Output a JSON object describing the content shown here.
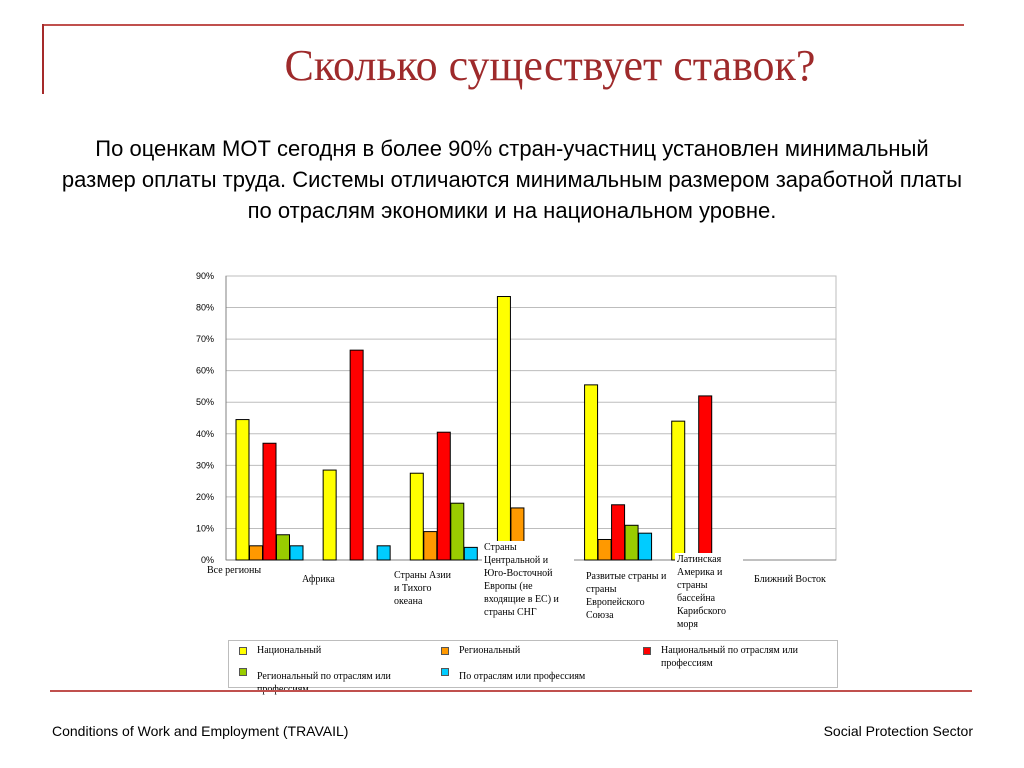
{
  "slide": {
    "title": "Сколько существует ставок?",
    "text": "По оценкам МОТ сегодня в более 90% стран-участниц установлен минимальный размер оплаты труда. Системы отличаются минимальным размером заработной платы по отраслям экономики и на национальном уровне.",
    "footer_left": "Conditions of Work and Employment (TRAVAIL)",
    "footer_right": "Social Protection Sector"
  },
  "chart_data": {
    "type": "bar",
    "categories": [
      "Все регионы",
      "Африка",
      "Страны Азии и Тихого океана",
      "Страны Центральной и Юго-Восточной Европы (не входящие в ЕС) и страны СНГ",
      "Развитые страны и страны Европейского Союза",
      "Латинская Америка и страны бассейна Карибского моря",
      "Ближний Восток"
    ],
    "series": [
      {
        "name": "Национальный",
        "color": "#ffff00",
        "values": [
          44.5,
          28.5,
          27.5,
          83.5,
          55.5,
          44,
          null
        ]
      },
      {
        "name": "Региональный",
        "color": "#ff9900",
        "values": [
          4.5,
          null,
          9,
          16.5,
          6.5,
          null,
          null
        ]
      },
      {
        "name": "Национальный по отраслям или профессиям",
        "color": "#ff0000",
        "values": [
          37,
          66.5,
          40.5,
          null,
          17.5,
          52,
          null
        ]
      },
      {
        "name": "Региональный по отраслям или профессиям",
        "color": "#99cc00",
        "values": [
          8,
          null,
          18,
          null,
          11,
          null,
          null
        ]
      },
      {
        "name": "По отраслям или профессиям",
        "color": "#00ccff",
        "values": [
          4.5,
          4.5,
          4,
          null,
          8.5,
          null,
          null
        ]
      }
    ],
    "yticks": [
      "90%",
      "80%",
      "70%",
      "60%",
      "50%",
      "40%",
      "30%",
      "20%",
      "10%",
      "0%"
    ],
    "ylim": [
      0,
      90
    ],
    "grid": true,
    "legend_position": "bottom"
  }
}
